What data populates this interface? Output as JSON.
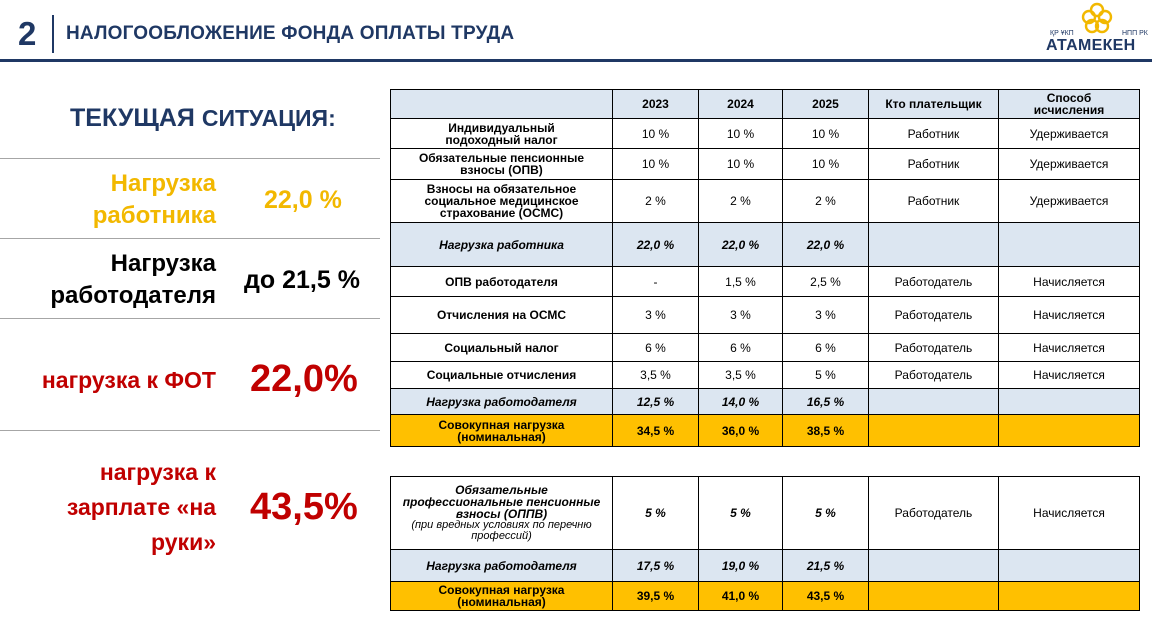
{
  "header": {
    "number": "2",
    "title": "НАЛОГООБЛОЖЕНИЕ ФОНДА ОПЛАТЫ ТРУДА",
    "logo": {
      "left_small": "ҚР ҰКП",
      "right_small": "НПП РК",
      "name": "АТАМЕКЕН"
    }
  },
  "left_panel": {
    "title_part1": "ТЕКУЩАЯ",
    "title_part2": "СИТУАЦИЯ:",
    "rows": [
      {
        "label_line1": "Нагрузка",
        "label_line2": "работника",
        "value": "22,0 %",
        "color": "#f2b800"
      },
      {
        "label_line1": "Нагрузка",
        "label_line2": "работодателя",
        "value": "до 21,5 %",
        "color": "#000000"
      },
      {
        "label_line1": "нагрузка к ФОТ",
        "value": "22,0%",
        "color": "#c00000"
      },
      {
        "label_line1": "нагрузка к",
        "label_line2": "зарплате «на",
        "label_line3": "руки»",
        "value": "43,5%",
        "color": "#c00000"
      }
    ]
  },
  "table1": {
    "headers": {
      "y2023": "2023",
      "y2024": "2024",
      "y2025": "2025",
      "payer": "Кто плательщик",
      "method": "Способ исчисления"
    },
    "rows": [
      {
        "name": "Индивидуальный подоходный налог",
        "y2023": "10 %",
        "y2024": "10 %",
        "y2025": "10 %",
        "payer": "Работник",
        "method": "Удерживается"
      },
      {
        "name": "Обязательные пенсионные взносы (ОПВ)",
        "y2023": "10 %",
        "y2024": "10 %",
        "y2025": "10 %",
        "payer": "Работник",
        "method": "Удерживается"
      },
      {
        "name": "Взносы на обязательное социальное медицинское страхование (ОСМС)",
        "y2023": "2 %",
        "y2024": "2 %",
        "y2025": "2 %",
        "payer": "Работник",
        "method": "Удерживается"
      },
      {
        "name": "Нагрузка работника",
        "y2023": "22,0 %",
        "y2024": "22,0 %",
        "y2025": "22,0 %",
        "payer": "",
        "method": ""
      },
      {
        "name": "ОПВ работодателя",
        "y2023": "-",
        "y2024": "1,5 %",
        "y2025": "2,5 %",
        "payer": "Работодатель",
        "method": "Начисляется"
      },
      {
        "name": "Отчисления на ОСМС",
        "y2023": "3 %",
        "y2024": "3 %",
        "y2025": "3 %",
        "payer": "Работодатель",
        "method": "Начисляется"
      },
      {
        "name": "Социальный налог",
        "y2023": "6 %",
        "y2024": "6 %",
        "y2025": "6 %",
        "payer": "Работодатель",
        "method": "Начисляется"
      },
      {
        "name": "Социальные отчисления",
        "y2023": "3,5 %",
        "y2024": "3,5 %",
        "y2025": "5 %",
        "payer": "Работодатель",
        "method": "Начисляется"
      },
      {
        "name": "Нагрузка работодателя",
        "y2023": "12,5 %",
        "y2024": "14,0 %",
        "y2025": "16,5 %",
        "payer": "",
        "method": ""
      },
      {
        "name": "Совокупная нагрузка (номинальная)",
        "y2023": "34,5 %",
        "y2024": "36,0 %",
        "y2025": "38,5 %",
        "payer": "",
        "method": ""
      }
    ]
  },
  "table2": {
    "rows": [
      {
        "name": "Обязательные профессиональные пенсионные взносы (ОППВ)",
        "note": "(при вредных условиях по перечню профессий)",
        "y2023": "5 %",
        "y2024": "5 %",
        "y2025": "5 %",
        "payer": "Работодатель",
        "method": "Начисляется"
      },
      {
        "name": "Нагрузка работодателя",
        "y2023": "17,5 %",
        "y2024": "19,0 %",
        "y2025": "21,5 %",
        "payer": "",
        "method": ""
      },
      {
        "name": "Совокупная нагрузка (номинальная)",
        "y2023": "39,5 %",
        "y2024": "41,0 %",
        "y2025": "43,5 %",
        "payer": "",
        "method": ""
      }
    ]
  }
}
